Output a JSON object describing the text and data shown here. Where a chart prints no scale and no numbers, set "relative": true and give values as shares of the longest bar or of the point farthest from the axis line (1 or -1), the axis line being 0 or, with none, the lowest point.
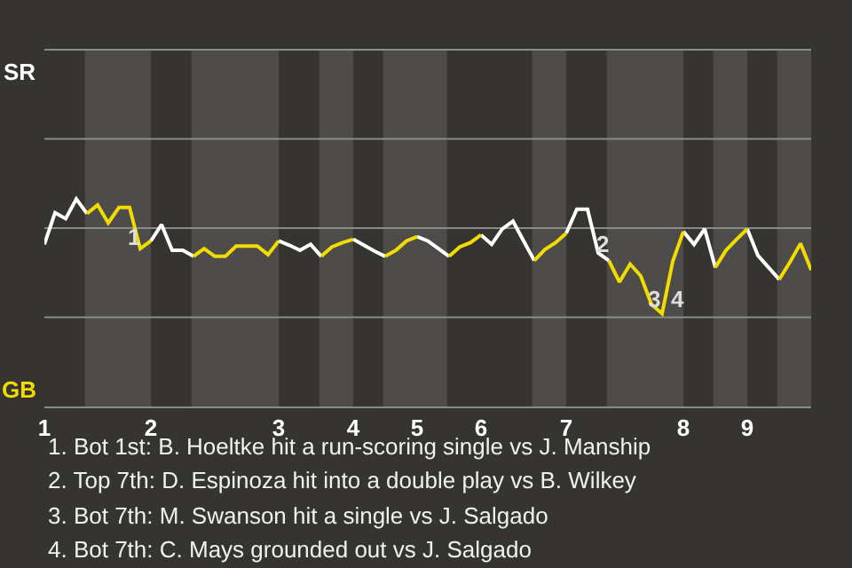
{
  "chart_data": {
    "type": "line",
    "relative": true,
    "categories": [
      "1",
      null,
      null,
      null,
      null,
      null,
      null,
      null,
      null,
      null,
      "2",
      null,
      null,
      null,
      null,
      null,
      null,
      null,
      null,
      null,
      null,
      null,
      "3",
      null,
      null,
      null,
      null,
      null,
      null,
      "4",
      null,
      null,
      null,
      null,
      null,
      "5",
      null,
      null,
      null,
      null,
      null,
      "6",
      null,
      null,
      null,
      null,
      null,
      null,
      null,
      "7",
      null,
      null,
      null,
      null,
      null,
      null,
      null,
      null,
      null,
      null,
      "8",
      null,
      null,
      null,
      null,
      null,
      "9",
      null,
      null,
      null,
      null,
      null,
      null
    ],
    "series": [
      {
        "name": "SR",
        "color": "#ffffff",
        "values": [
          -0.19,
          0.18,
          0.11,
          0.34,
          0.17,
          null,
          null,
          null,
          null,
          null,
          -0.15,
          0.04,
          -0.26,
          -0.26,
          -0.33,
          null,
          null,
          null,
          null,
          null,
          null,
          null,
          -0.15,
          -0.2,
          -0.26,
          -0.19,
          -0.33,
          null,
          null,
          -0.13,
          -0.2,
          -0.27,
          -0.33,
          null,
          null,
          -0.1,
          -0.15,
          -0.24,
          -0.33,
          null,
          null,
          -0.08,
          -0.19,
          -0.01,
          0.08,
          -0.15,
          -0.38,
          null,
          null,
          -0.06,
          0.22,
          0.22,
          -0.29,
          -0.38,
          null,
          null,
          null,
          null,
          null,
          null,
          -0.04,
          -0.19,
          -0.01,
          -0.46,
          null,
          null,
          -0.01,
          -0.32,
          -0.46,
          -0.6,
          null,
          null,
          null
        ]
      },
      {
        "name": "GB",
        "color": "#f2dc00",
        "values": [
          null,
          null,
          null,
          null,
          0.17,
          0.27,
          0.06,
          0.24,
          0.24,
          -0.24,
          -0.15,
          null,
          null,
          null,
          -0.33,
          -0.24,
          -0.33,
          -0.33,
          -0.21,
          -0.21,
          -0.21,
          -0.31,
          -0.15,
          null,
          null,
          null,
          -0.33,
          -0.22,
          -0.17,
          -0.13,
          null,
          null,
          -0.33,
          -0.26,
          -0.15,
          -0.1,
          null,
          null,
          -0.33,
          -0.22,
          -0.17,
          -0.08,
          null,
          null,
          null,
          null,
          -0.38,
          -0.25,
          -0.17,
          -0.06,
          null,
          null,
          null,
          -0.38,
          -0.63,
          -0.42,
          -0.56,
          -0.89,
          -1,
          -0.39,
          -0.04,
          null,
          null,
          -0.46,
          -0.26,
          -0.13,
          -0.01,
          null,
          null,
          -0.6,
          -0.4,
          -0.18,
          -0.49
        ]
      }
    ],
    "annotations": [
      {
        "text": "1",
        "y": -0.1
      },
      {
        "text": "2",
        "y": -0.19
      },
      {
        "text": "3",
        "y": -0.83
      },
      "4",
      "1. Bot 1st: B. Hoeltke hit a run-scoring single vs J. Manship",
      "2. Top 7th: D. Espinoza hit into a double play vs B. Wilkey",
      "3. Bot 7th: M. Swanson hit a single vs J. Salgado",
      "4. Bot 7th: C. Mays grounded out vs J. Salgado"
    ]
  }
}
